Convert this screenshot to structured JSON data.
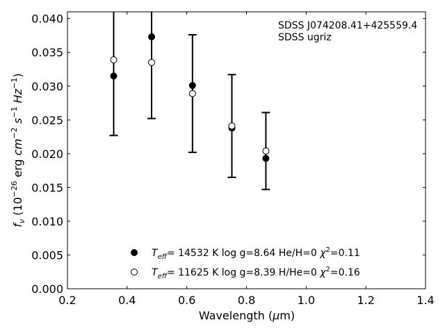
{
  "chart_data": {
    "type": "scatter",
    "title": "",
    "xlabel": "Wavelength (μm)",
    "ylabel": "f_ν (10^-26 erg cm^-2 s^-1 Hz^-1)",
    "xlim": [
      0.2,
      1.4
    ],
    "ylim": [
      0.0,
      0.041
    ],
    "xticks": [
      "0.2",
      "0.4",
      "0.6",
      "0.8",
      "1.0",
      "1.2",
      "1.4"
    ],
    "yticks": [
      "0.000",
      "0.005",
      "0.010",
      "0.015",
      "0.020",
      "0.025",
      "0.030",
      "0.035",
      "0.040"
    ],
    "grid": false,
    "legend_position": "bottom-center",
    "annotations": [
      "SDSS J074208.41+425559.4",
      "SDSS ugriz"
    ],
    "observed": {
      "x": [
        0.355,
        0.482,
        0.619,
        0.751,
        0.865
      ],
      "y": [
        0.0339,
        0.0335,
        0.0289,
        0.0241,
        0.0204
      ],
      "yerr": [
        0.0112,
        0.0083,
        0.0087,
        0.0076,
        0.0057
      ]
    },
    "series": [
      {
        "name": "T_eff= 14532 K  log g=8.64  He/H=0  χ²=0.11",
        "marker": "filled-circle",
        "x": [
          0.355,
          0.482,
          0.619,
          0.751,
          0.865
        ],
        "y": [
          0.0315,
          0.0373,
          0.0301,
          0.0238,
          0.0193
        ]
      },
      {
        "name": "T_eff= 11625 K  log g=8.39  H/He=0  χ²=0.16",
        "marker": "open-circle",
        "x": [
          0.355,
          0.482,
          0.619,
          0.751,
          0.865
        ],
        "y": [
          0.0339,
          0.0335,
          0.0289,
          0.0241,
          0.0204
        ]
      }
    ]
  },
  "legend": {
    "entries": [
      {
        "teff_value": "= 14532 K  log g=8.64  He/H=0  ",
        "chi_value": "=0.11"
      },
      {
        "teff_value": "= 11625 K  log g=8.39  H/He=0  ",
        "chi_value": "=0.16"
      }
    ]
  },
  "colors": {
    "marker_edge": "#000000",
    "filled_marker": "#000000",
    "open_marker": "#ffffff",
    "axes": "#000000"
  }
}
